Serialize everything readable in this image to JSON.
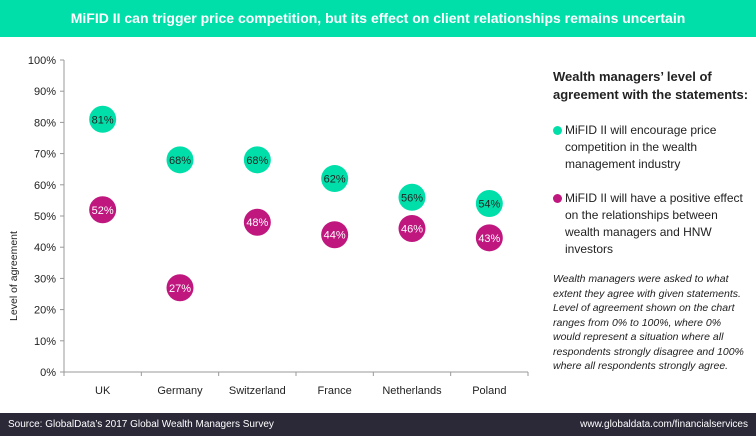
{
  "title": "MiFID II can trigger price competition, but its effect on client relationships remains uncertain",
  "legend": {
    "heading": "Wealth managers’ level of agreement with the statements:",
    "items": [
      {
        "label": "MiFID II will encourage price competition in the wealth management industry",
        "color": "#00DFAA"
      },
      {
        "label": "MiFID II will have a positive effect on the relationships between wealth managers and HNW investors",
        "color": "#C0177F"
      }
    ]
  },
  "note": "Wealth managers were asked to what extent they agree with given statements. Level of agreement shown on the chart ranges from 0% to 100%, where 0% would represent a situation where all respondents strongly disagree and 100% where all respondents strongly agree.",
  "footer": {
    "source": "Source: GlobalData’s 2017 Global Wealth Managers Survey",
    "url": "www.globaldata.com/financialservices"
  },
  "chart_data": {
    "type": "scatter",
    "categories": [
      "UK",
      "Germany",
      "Switzerland",
      "France",
      "Netherlands",
      "Poland"
    ],
    "ylabel": "Level of agreement",
    "ylim": [
      0,
      100
    ],
    "yticks": [
      "0%",
      "10%",
      "20%",
      "30%",
      "40%",
      "50%",
      "60%",
      "70%",
      "80%",
      "90%",
      "100%"
    ],
    "series": [
      {
        "name": "MiFID II will encourage price competition in the wealth management industry",
        "color": "#00DFAA",
        "values": [
          81,
          68,
          68,
          62,
          56,
          54
        ]
      },
      {
        "name": "MiFID II will have a positive effect on the relationships between wealth managers and HNW investors",
        "color": "#C0177F",
        "values": [
          52,
          27,
          48,
          44,
          46,
          43
        ]
      }
    ]
  }
}
